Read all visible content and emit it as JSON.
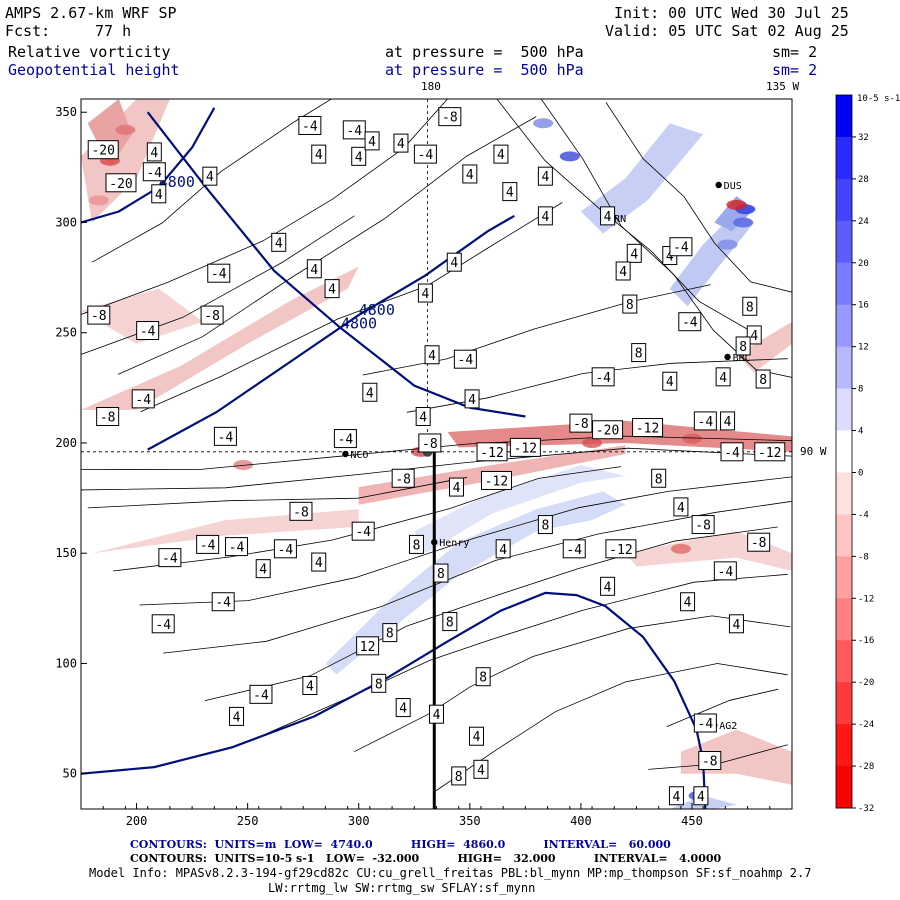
{
  "header": {
    "model": "AMPS 2.67-km WRF SP",
    "init": "Init: 00 UTC Wed 30 Jul 25",
    "fcst_label": "Fcst:",
    "fcst_value": "77 h",
    "valid": "Valid: 05 UTC Sat 02 Aug 25",
    "field1_name": "Relative vorticity",
    "field1_level": "at pressure =  500 hPa",
    "field1_sm": "sm= 2",
    "field2_name": "Geopotential height",
    "field2_level": "at pressure =  500 hPa",
    "field2_sm": "sm= 2"
  },
  "map": {
    "lon_labels": [
      "180",
      "135 W",
      "90 W"
    ],
    "x_ticks": [
      200,
      250,
      300,
      350,
      400,
      450
    ],
    "y_ticks": [
      50,
      100,
      150,
      200,
      250,
      300,
      350
    ],
    "x_range": [
      175,
      495
    ],
    "y_range": [
      34,
      356
    ],
    "stations": [
      {
        "name": "NCO",
        "x": 294,
        "y": 195
      },
      {
        "name": "Henry",
        "x": 334,
        "y": 155
      },
      {
        "name": "BRC",
        "x": 466,
        "y": 239
      },
      {
        "name": "AG2",
        "x": 460,
        "y": 72
      },
      {
        "name": "DUS",
        "x": 462,
        "y": 317
      },
      {
        "name": "GRN",
        "x": 410,
        "y": 302
      }
    ],
    "height_contours": [
      {
        "label": "4800",
        "points": [
          [
            205,
            350
          ],
          [
            232,
            315
          ],
          [
            262,
            278
          ],
          [
            292,
            252
          ],
          [
            325,
            226
          ],
          [
            350,
            216
          ],
          [
            375,
            212
          ]
        ]
      },
      {
        "label": "4800",
        "points": [
          [
            205,
            197
          ],
          [
            236,
            214
          ],
          [
            268,
            236
          ],
          [
            300,
            258
          ],
          [
            330,
            276
          ],
          [
            358,
            296
          ],
          [
            370,
            303
          ]
        ]
      },
      {
        "label": "4800",
        "points": [
          [
            175,
            300
          ],
          [
            192,
            305
          ],
          [
            210,
            316
          ],
          [
            225,
            334
          ],
          [
            235,
            352
          ]
        ]
      },
      {
        "label": "",
        "points": [
          [
            175,
            50
          ],
          [
            208,
            53
          ],
          [
            243,
            62
          ],
          [
            280,
            76
          ],
          [
            312,
            93
          ],
          [
            340,
            110
          ],
          [
            364,
            124
          ],
          [
            384,
            132
          ],
          [
            398,
            131
          ],
          [
            411,
            126
          ],
          [
            428,
            112
          ],
          [
            442,
            92
          ],
          [
            452,
            70
          ],
          [
            455,
            56
          ],
          [
            456,
            34
          ]
        ]
      }
    ],
    "contour_labels": [
      "4",
      "-4",
      "8",
      "-8",
      "12",
      "-12",
      "-20"
    ]
  },
  "colorbar": {
    "unit": "10-5 s-1",
    "labels": [
      "32",
      "28",
      "24",
      "20",
      "16",
      "12",
      "8",
      "4",
      "0",
      "-4",
      "-8",
      "-12",
      "-16",
      "-20",
      "-24",
      "-28",
      "-32"
    ]
  },
  "footer": {
    "line1": "CONTOURS:  UNITS=m  LOW=  4740.0          HIGH=  4860.0          INTERVAL=   60.000",
    "line2": "CONTOURS:  UNITS=10-5 s-1   LOW=  -32.000          HIGH=   32.000          INTERVAL=   4.0000",
    "line3": "Model Info: MPASv8.2.3-194-gf29cd82c CU:cu_grell_freitas PBL:bl_mynn MP:mp_thompson SF:sf_noahmp 2.7",
    "line4": "LW:rrtmg_lw SW:rrtmg_sw SFLAY:sf_mynn"
  }
}
